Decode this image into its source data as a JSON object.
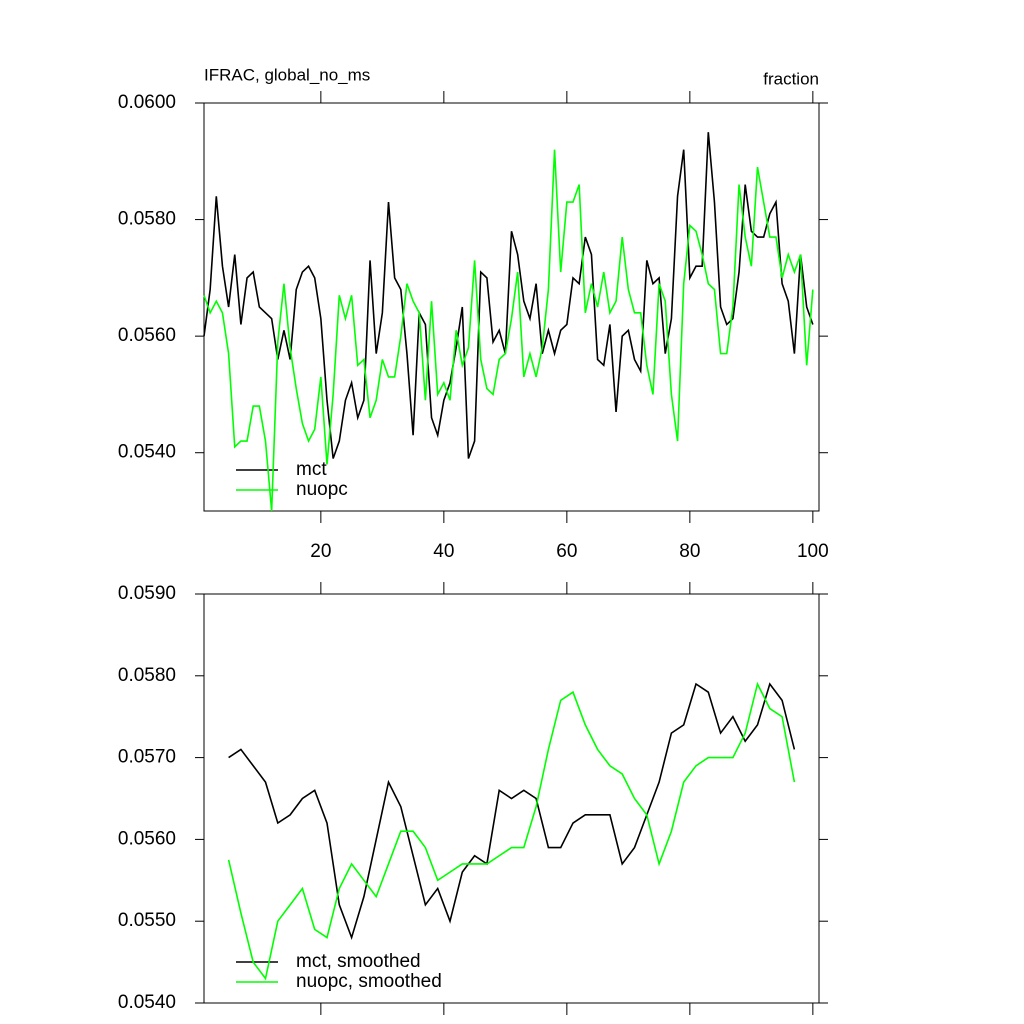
{
  "chart_data": [
    {
      "type": "line",
      "title": "IFRAC, global_no_ms",
      "right_label": "fraction",
      "x": [
        1,
        2,
        3,
        4,
        5,
        6,
        7,
        8,
        9,
        10,
        11,
        12,
        13,
        14,
        15,
        16,
        17,
        18,
        19,
        20,
        21,
        22,
        23,
        24,
        25,
        26,
        27,
        28,
        29,
        30,
        31,
        32,
        33,
        34,
        35,
        36,
        37,
        38,
        39,
        40,
        41,
        42,
        43,
        44,
        45,
        46,
        47,
        48,
        49,
        50,
        51,
        52,
        53,
        54,
        55,
        56,
        57,
        58,
        59,
        60,
        61,
        62,
        63,
        64,
        65,
        66,
        67,
        68,
        69,
        70,
        71,
        72,
        73,
        74,
        75,
        76,
        77,
        78,
        79,
        80,
        81,
        82,
        83,
        84,
        85,
        86,
        87,
        88,
        89,
        90,
        91,
        92,
        93,
        94,
        95,
        96,
        97,
        98,
        99,
        100
      ],
      "series": [
        {
          "name": "mct",
          "color": "#000000",
          "values": [
            0.056,
            0.0568,
            0.0584,
            0.0572,
            0.0565,
            0.0574,
            0.0562,
            0.057,
            0.0571,
            0.0565,
            0.0564,
            0.0563,
            0.0556,
            0.0561,
            0.0556,
            0.0568,
            0.0571,
            0.0572,
            0.057,
            0.0563,
            0.0549,
            0.0539,
            0.0542,
            0.0549,
            0.0552,
            0.0546,
            0.0549,
            0.0573,
            0.0557,
            0.0564,
            0.0583,
            0.057,
            0.0568,
            0.0557,
            0.0543,
            0.0564,
            0.0562,
            0.0546,
            0.0543,
            0.0549,
            0.0552,
            0.0558,
            0.0565,
            0.0539,
            0.0542,
            0.0571,
            0.057,
            0.0559,
            0.0561,
            0.0557,
            0.0578,
            0.0574,
            0.0566,
            0.0563,
            0.0569,
            0.0557,
            0.0561,
            0.0557,
            0.0561,
            0.0562,
            0.057,
            0.0569,
            0.0577,
            0.0574,
            0.0556,
            0.0555,
            0.0562,
            0.0547,
            0.056,
            0.0561,
            0.0556,
            0.0554,
            0.0573,
            0.0569,
            0.057,
            0.0557,
            0.0563,
            0.0584,
            0.0592,
            0.057,
            0.0572,
            0.0572,
            0.0595,
            0.0583,
            0.0565,
            0.0562,
            0.0563,
            0.0571,
            0.0586,
            0.0578,
            0.0577,
            0.0577,
            0.0581,
            0.0583,
            0.0569,
            0.0566,
            0.0557,
            0.0574,
            0.0565,
            0.0562
          ]
        },
        {
          "name": "nuopc",
          "color": "#00ff00",
          "values": [
            0.0567,
            0.0564,
            0.0566,
            0.0564,
            0.0557,
            0.0541,
            0.0542,
            0.0542,
            0.0548,
            0.0548,
            0.0542,
            0.053,
            0.0559,
            0.0569,
            0.0558,
            0.0551,
            0.0545,
            0.0542,
            0.0544,
            0.0553,
            0.0538,
            0.055,
            0.0567,
            0.0563,
            0.0567,
            0.0555,
            0.0556,
            0.0546,
            0.0549,
            0.0556,
            0.0553,
            0.0553,
            0.056,
            0.0569,
            0.0566,
            0.0564,
            0.0549,
            0.0566,
            0.055,
            0.0552,
            0.0549,
            0.0561,
            0.0555,
            0.0558,
            0.0573,
            0.0556,
            0.0551,
            0.055,
            0.0556,
            0.0557,
            0.0563,
            0.0571,
            0.0553,
            0.0557,
            0.0553,
            0.0558,
            0.0568,
            0.0592,
            0.0571,
            0.0583,
            0.0583,
            0.0586,
            0.0564,
            0.0569,
            0.0565,
            0.0571,
            0.0564,
            0.0566,
            0.0577,
            0.0568,
            0.0564,
            0.0564,
            0.0555,
            0.055,
            0.0569,
            0.0566,
            0.055,
            0.0542,
            0.0569,
            0.0579,
            0.0578,
            0.0574,
            0.0569,
            0.0568,
            0.0557,
            0.0557,
            0.0565,
            0.0586,
            0.0577,
            0.0572,
            0.0589,
            0.0583,
            0.0577,
            0.0577,
            0.057,
            0.0574,
            0.0571,
            0.0574,
            0.0555,
            0.0568
          ]
        }
      ],
      "xlim": [
        1,
        101
      ],
      "xticks": [
        20,
        40,
        60,
        80,
        100
      ],
      "ylim": [
        0.053,
        0.06
      ],
      "yticks": [
        {
          "value": 0.054,
          "label": "0.0540"
        },
        {
          "value": 0.056,
          "label": "0.0560"
        },
        {
          "value": 0.058,
          "label": "0.0580"
        },
        {
          "value": 0.06,
          "label": "0.0600"
        }
      ]
    },
    {
      "type": "line",
      "x": [
        5,
        7,
        9,
        11,
        13,
        15,
        17,
        19,
        21,
        23,
        25,
        27,
        29,
        31,
        33,
        35,
        37,
        39,
        41,
        43,
        45,
        47,
        49,
        51,
        53,
        55,
        57,
        59,
        61,
        63,
        65,
        67,
        69,
        71,
        73,
        75,
        77,
        79,
        81,
        83,
        85,
        87,
        89,
        91,
        93,
        95,
        97
      ],
      "series": [
        {
          "name": "mct, smoothed",
          "color": "#000000",
          "values": [
            0.057,
            0.0571,
            0.0569,
            0.0567,
            0.0562,
            0.0563,
            0.0565,
            0.0566,
            0.0562,
            0.0552,
            0.0548,
            0.0553,
            0.056,
            0.0567,
            0.0564,
            0.0558,
            0.0552,
            0.0554,
            0.055,
            0.0556,
            0.0558,
            0.0557,
            0.0566,
            0.0565,
            0.0566,
            0.0565,
            0.0559,
            0.0559,
            0.0562,
            0.0563,
            0.0563,
            0.0563,
            0.0557,
            0.0559,
            0.0563,
            0.0567,
            0.0573,
            0.0574,
            0.0579,
            0.0578,
            0.0573,
            0.0575,
            0.0572,
            0.0574,
            0.0579,
            0.0577,
            0.0571
          ]
        },
        {
          "name": "nuopc, smoothed",
          "color": "#00ff00",
          "values": [
            0.05575,
            0.0551,
            0.0545,
            0.0543,
            0.055,
            0.0552,
            0.0554,
            0.0549,
            0.0548,
            0.0554,
            0.0557,
            0.0555,
            0.0553,
            0.0557,
            0.0561,
            0.0561,
            0.0559,
            0.0555,
            0.0556,
            0.0557,
            0.0557,
            0.0557,
            0.0558,
            0.0559,
            0.0559,
            0.0564,
            0.0571,
            0.0577,
            0.0578,
            0.0574,
            0.0571,
            0.0569,
            0.0568,
            0.0565,
            0.0563,
            0.0557,
            0.0561,
            0.0567,
            0.0569,
            0.057,
            0.057,
            0.057,
            0.0573,
            0.0579,
            0.0576,
            0.0575,
            0.0567
          ]
        }
      ],
      "xlim": [
        1,
        101
      ],
      "xticks": [
        20,
        40,
        60,
        80,
        100
      ],
      "ylim": [
        0.054,
        0.059
      ],
      "yticks": [
        {
          "value": 0.054,
          "label": "0.0540"
        },
        {
          "value": 0.055,
          "label": "0.0550"
        },
        {
          "value": 0.056,
          "label": "0.0560"
        },
        {
          "value": 0.057,
          "label": "0.0570"
        },
        {
          "value": 0.058,
          "label": "0.0580"
        },
        {
          "value": 0.059,
          "label": "0.0590"
        }
      ]
    }
  ]
}
